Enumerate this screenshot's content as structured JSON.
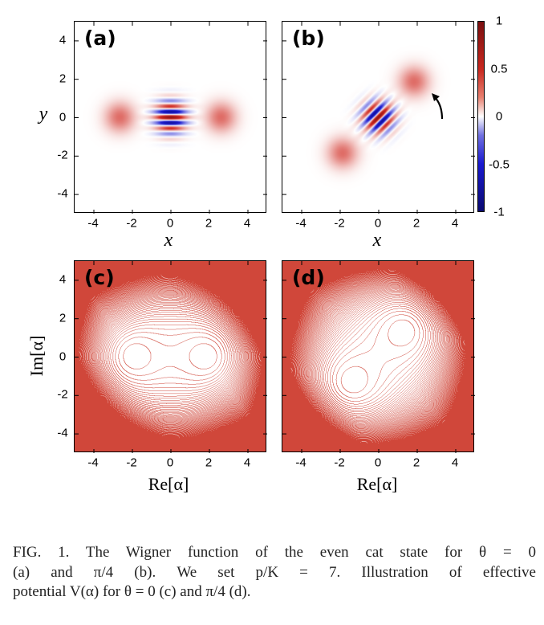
{
  "chart_data": [
    {
      "type": "heatmap",
      "panel_label": "(a)",
      "xlabel": "x",
      "ylabel": "y",
      "xlim": [
        -5,
        5
      ],
      "ylim": [
        -5,
        5
      ],
      "xticks": [
        "-4",
        "-2",
        "0",
        "2",
        "4"
      ],
      "yticks": [
        "4",
        "2",
        "0",
        "-2",
        "-4"
      ],
      "theta": "0",
      "cat_amplitude": 2.65,
      "colormap": {
        "min": -1,
        "max": 1,
        "neg": "#1a1ad0",
        "zero": "#ffffff",
        "pos": "#d0281f"
      }
    },
    {
      "type": "heatmap",
      "panel_label": "(b)",
      "xlabel": "x",
      "xlim": [
        -5,
        5
      ],
      "ylim": [
        -5,
        5
      ],
      "xticks": [
        "-4",
        "-2",
        "0",
        "2",
        "4"
      ],
      "theta": "π/4",
      "cat_amplitude": 2.65,
      "colorbar_ticks": [
        "1",
        "0.5",
        "0",
        "-0.5",
        "-1"
      ],
      "annotation": "arrow pointing at upper-right blob"
    },
    {
      "type": "contour",
      "panel_label": "(c)",
      "xlabel": "Re[α]",
      "ylabel": "Im[α]",
      "xlim": [
        -5,
        5
      ],
      "ylim": [
        -5,
        5
      ],
      "xticks": [
        "-4",
        "-2",
        "0",
        "2",
        "4"
      ],
      "yticks": [
        "4",
        "2",
        "0",
        "-2",
        "-4"
      ],
      "theta": "0",
      "p_over_K": 7,
      "line_color": "#d0473a"
    },
    {
      "type": "contour",
      "panel_label": "(d)",
      "xlabel": "Re[α]",
      "xlim": [
        -5,
        5
      ],
      "ylim": [
        -5,
        5
      ],
      "xticks": [
        "-4",
        "-2",
        "0",
        "2",
        "4"
      ],
      "theta": "π/4",
      "p_over_K": 7,
      "line_color": "#d0473a"
    }
  ],
  "caption": {
    "lines": [
      "FIG. 1.   The Wigner function of the even cat state for θ = 0",
      "(a) and π/4 (b).  We set p/K = 7.  Illustration of effective",
      "potential V(α) for θ = 0 (c) and π/4 (d)."
    ]
  }
}
